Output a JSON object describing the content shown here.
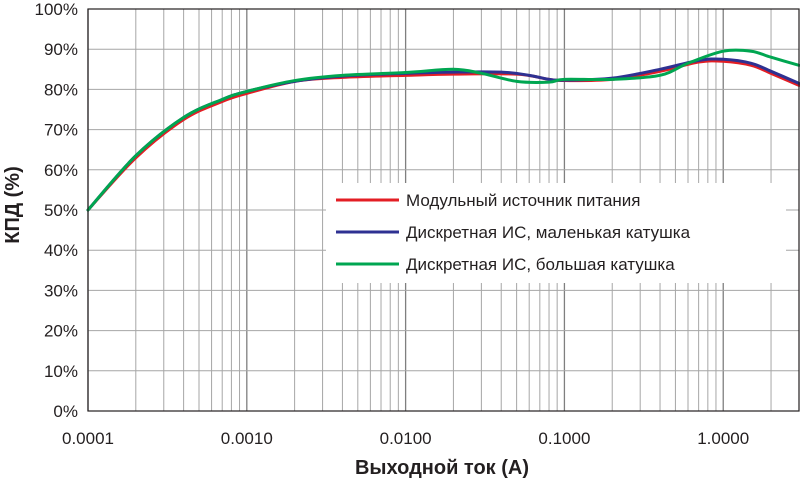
{
  "chart_data": {
    "type": "line",
    "title": "",
    "xlabel": "Выходной ток (А)",
    "ylabel": "КПД (%)",
    "x_scale": "log",
    "xlim": [
      0.0001,
      3.0
    ],
    "ylim": [
      0,
      100
    ],
    "grid": true,
    "legend_position": "center-right",
    "x_tick_values": [
      0.0001,
      0.001,
      0.01,
      0.1,
      1.0
    ],
    "x_tick_labels": [
      "0.0001",
      "0.0010",
      "0.0100",
      "0.1000",
      "1.0000"
    ],
    "y_tick_values": [
      0,
      10,
      20,
      30,
      40,
      50,
      60,
      70,
      80,
      90,
      100
    ],
    "y_tick_labels": [
      "0%",
      "10%",
      "20%",
      "30%",
      "40%",
      "50%",
      "60%",
      "70%",
      "80%",
      "90%",
      "100%"
    ],
    "series": [
      {
        "name": "Модульный источник питания",
        "color": "#e31e24",
        "points": [
          [
            0.0001,
            50
          ],
          [
            0.0002,
            63
          ],
          [
            0.0004,
            72.5
          ],
          [
            0.0007,
            77
          ],
          [
            0.001,
            79
          ],
          [
            0.002,
            82
          ],
          [
            0.004,
            83
          ],
          [
            0.01,
            83.5
          ],
          [
            0.02,
            83.8
          ],
          [
            0.05,
            83.8
          ],
          [
            0.08,
            82.5
          ],
          [
            0.1,
            82.2
          ],
          [
            0.2,
            82.5
          ],
          [
            0.4,
            84.5
          ],
          [
            0.7,
            86.8
          ],
          [
            1.0,
            87
          ],
          [
            1.5,
            86
          ],
          [
            2.0,
            84
          ],
          [
            3.0,
            81
          ]
        ]
      },
      {
        "name": "Дискретная ИС, маленькая катушка",
        "color": "#2e3192",
        "points": [
          [
            0.0001,
            50
          ],
          [
            0.0002,
            63.5
          ],
          [
            0.0004,
            73
          ],
          [
            0.0007,
            77.5
          ],
          [
            0.001,
            79.5
          ],
          [
            0.002,
            82
          ],
          [
            0.004,
            83.3
          ],
          [
            0.01,
            84
          ],
          [
            0.02,
            84.3
          ],
          [
            0.04,
            84.3
          ],
          [
            0.06,
            83.5
          ],
          [
            0.08,
            82.5
          ],
          [
            0.1,
            82.3
          ],
          [
            0.2,
            82.8
          ],
          [
            0.4,
            85
          ],
          [
            0.7,
            87.2
          ],
          [
            1.0,
            87.5
          ],
          [
            1.5,
            86.5
          ],
          [
            2.0,
            84.5
          ],
          [
            3.0,
            81.5
          ]
        ]
      },
      {
        "name": "Дискретная ИС, большая катушка",
        "color": "#00a651",
        "points": [
          [
            0.0001,
            50
          ],
          [
            0.0002,
            63.5
          ],
          [
            0.0004,
            73
          ],
          [
            0.0007,
            77.5
          ],
          [
            0.001,
            79.5
          ],
          [
            0.002,
            82.2
          ],
          [
            0.004,
            83.5
          ],
          [
            0.01,
            84.2
          ],
          [
            0.02,
            85
          ],
          [
            0.03,
            84
          ],
          [
            0.05,
            82
          ],
          [
            0.08,
            81.8
          ],
          [
            0.1,
            82.5
          ],
          [
            0.2,
            82.5
          ],
          [
            0.4,
            83.5
          ],
          [
            0.6,
            86.5
          ],
          [
            1.0,
            89.5
          ],
          [
            1.5,
            89.5
          ],
          [
            2.0,
            88
          ],
          [
            3.0,
            86
          ]
        ]
      }
    ]
  }
}
